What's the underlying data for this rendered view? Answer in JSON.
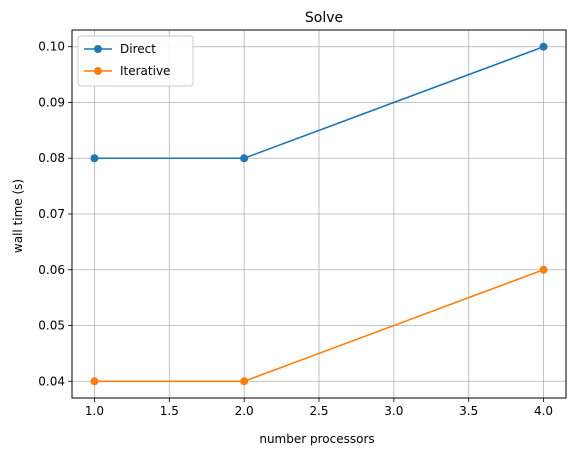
{
  "chart_data": {
    "type": "line",
    "title": "Solve",
    "xlabel": "number processors",
    "ylabel": "wall time (s)",
    "xlim": [
      0.85,
      4.15
    ],
    "ylim": [
      0.037,
      0.103
    ],
    "xticks": [
      1.0,
      1.5,
      2.0,
      2.5,
      3.0,
      3.5,
      4.0
    ],
    "xtick_labels": [
      "1.0",
      "1.5",
      "2.0",
      "2.5",
      "3.0",
      "3.5",
      "4.0"
    ],
    "yticks": [
      0.04,
      0.05,
      0.06,
      0.07,
      0.08,
      0.09,
      0.1
    ],
    "ytick_labels": [
      "0.04",
      "0.05",
      "0.06",
      "0.07",
      "0.08",
      "0.09",
      "0.10"
    ],
    "grid": true,
    "legend_position": "top-left",
    "x": [
      1,
      2,
      4
    ],
    "series": [
      {
        "name": "Direct",
        "values": [
          0.08,
          0.08,
          0.1
        ],
        "color": "#1f77b4",
        "marker": "circle"
      },
      {
        "name": "Iterative",
        "values": [
          0.04,
          0.04,
          0.06
        ],
        "color": "#ff7f0e",
        "marker": "circle"
      }
    ]
  }
}
